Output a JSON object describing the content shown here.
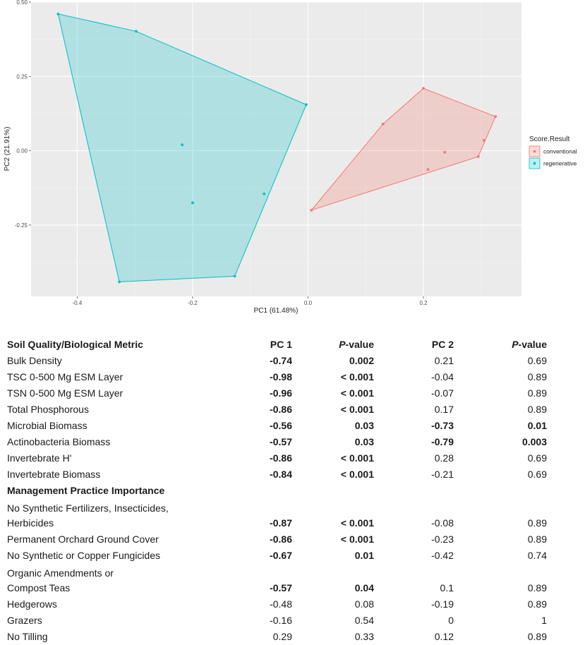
{
  "chart_data": {
    "type": "scatter",
    "xlabel": "PC1 (61.48%)",
    "ylabel": "PC2 (21.91%)",
    "xlim": [
      -0.48,
      0.37
    ],
    "ylim": [
      -0.49,
      0.5
    ],
    "x_ticks": [
      -0.4,
      -0.2,
      0.0,
      0.2
    ],
    "x_tick_labels": [
      "-0.4",
      "-0.2",
      "0.0",
      "0.2"
    ],
    "y_ticks": [
      -0.25,
      0.0,
      0.25,
      0.5
    ],
    "y_tick_labels": [
      "-0.25",
      "0.00",
      "0.25",
      "0.50"
    ],
    "grid": true,
    "legend_title": "Score.Result",
    "legend_position": "right",
    "series": [
      {
        "name": "conventional",
        "color": "#F8766D",
        "hull": true,
        "points": [
          [
            0.006,
            -0.2
          ],
          [
            0.13,
            0.09
          ],
          [
            0.2,
            0.21
          ],
          [
            0.325,
            0.115
          ],
          [
            0.305,
            0.035
          ],
          [
            0.295,
            -0.02
          ],
          [
            0.237,
            -0.005
          ],
          [
            0.208,
            -0.063
          ]
        ]
      },
      {
        "name": "regenerative",
        "color": "#00BFC4",
        "hull": true,
        "points": [
          [
            -0.433,
            0.46
          ],
          [
            -0.298,
            0.402
          ],
          [
            -0.003,
            0.155
          ],
          [
            -0.127,
            -0.422
          ],
          [
            -0.327,
            -0.441
          ],
          [
            -0.218,
            0.02
          ],
          [
            -0.2,
            -0.175
          ],
          [
            -0.076,
            -0.145
          ]
        ]
      }
    ]
  },
  "table": {
    "header": {
      "metric": "Soil Quality/Biological Metric",
      "pc1": "PC 1",
      "p1_prefix": "P",
      "p1_suffix": "-value",
      "pc2": "PC 2",
      "p2_prefix": "P",
      "p2_suffix": "-value"
    },
    "section2_title": "Management Practice Importance",
    "rows": [
      {
        "label": "Bulk Density",
        "pc1": "-0.74",
        "p1": "0.002",
        "pc2": "0.21",
        "p2": "0.69",
        "b": [
          1,
          1,
          0,
          0
        ]
      },
      {
        "label": "TSC 0-500 Mg ESM Layer",
        "pc1": "-0.98",
        "p1": "< 0.001",
        "pc2": "-0.04",
        "p2": "0.89",
        "b": [
          1,
          1,
          0,
          0
        ]
      },
      {
        "label": "TSN 0-500 Mg ESM Layer",
        "pc1": "-0.96",
        "p1": "< 0.001",
        "pc2": "-0.07",
        "p2": "0.89",
        "b": [
          1,
          1,
          0,
          0
        ]
      },
      {
        "label": "Total Phosphorous",
        "pc1": "-0.86",
        "p1": "< 0.001",
        "pc2": "0.17",
        "p2": "0.89",
        "b": [
          1,
          1,
          0,
          0
        ]
      },
      {
        "label": "Microbial Biomass",
        "pc1": "-0.56",
        "p1": "0.03",
        "pc2": "-0.73",
        "p2": "0.01",
        "b": [
          1,
          1,
          1,
          1
        ]
      },
      {
        "label": "Actinobacteria Biomass",
        "pc1": "-0.57",
        "p1": "0.03",
        "pc2": "-0.79",
        "p2": "0.003",
        "b": [
          1,
          1,
          1,
          1
        ]
      },
      {
        "label": "Invertebrate H'",
        "pc1": "-0.86",
        "p1": "< 0.001",
        "pc2": "0.28",
        "p2": "0.69",
        "b": [
          1,
          1,
          0,
          0
        ]
      },
      {
        "label": "Invertebrate Biomass",
        "pc1": "-0.84",
        "p1": "< 0.001",
        "pc2": "-0.21",
        "p2": "0.69",
        "b": [
          1,
          1,
          0,
          0
        ]
      },
      {
        "section": true
      },
      {
        "label": "Herbicides",
        "label_line1": "No Synthetic Fertilizers, Insecticides,",
        "pc1": "-0.87",
        "p1": "< 0.001",
        "pc2": "-0.08",
        "p2": "0.89",
        "b": [
          1,
          1,
          0,
          0
        ]
      },
      {
        "label": "Permanent Orchard Ground Cover",
        "pc1": "-0.86",
        "p1": "< 0.001",
        "pc2": "-0.23",
        "p2": "0.89",
        "b": [
          1,
          1,
          0,
          0
        ]
      },
      {
        "label": "No Synthetic or Copper Fungicides",
        "pc1": "-0.67",
        "p1": "0.01",
        "pc2": "-0.42",
        "p2": "0.74",
        "b": [
          1,
          1,
          0,
          0
        ]
      },
      {
        "label": "Compost Teas",
        "label_line1": "Organic Amendments or",
        "pc1": "-0.57",
        "p1": "0.04",
        "pc2": "0.1",
        "p2": "0.89",
        "b": [
          1,
          1,
          0,
          0
        ]
      },
      {
        "label": "Hedgerows",
        "pc1": "-0.48",
        "p1": "0.08",
        "pc2": "-0.19",
        "p2": "0.89",
        "b": [
          0,
          0,
          0,
          0
        ]
      },
      {
        "label": "Grazers",
        "pc1": "-0.16",
        "p1": "0.54",
        "pc2": "0",
        "p2": "1",
        "b": [
          0,
          0,
          0,
          0
        ]
      },
      {
        "label": "No Tilling",
        "pc1": "0.29",
        "p1": "0.33",
        "pc2": "0.12",
        "p2": "0.89",
        "b": [
          0,
          0,
          0,
          0
        ]
      }
    ]
  }
}
